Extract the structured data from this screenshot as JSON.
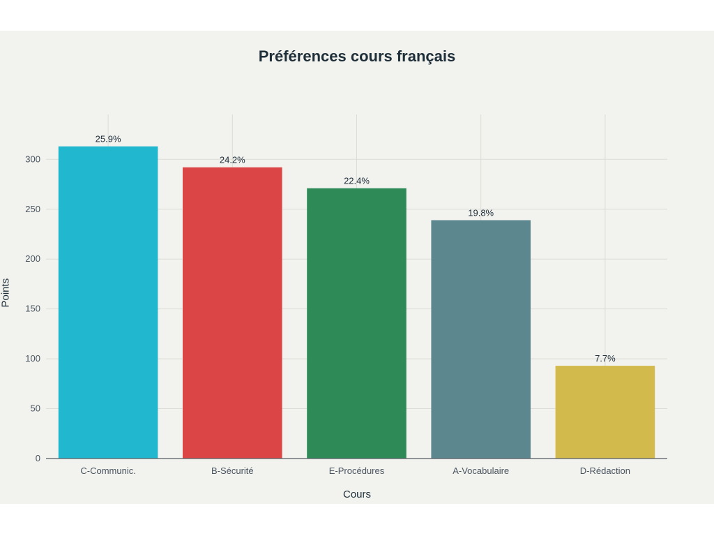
{
  "chart_data": {
    "type": "bar",
    "title": "Préférences cours français",
    "xlabel": "Cours",
    "ylabel": "Points",
    "categories": [
      "C-Communic.",
      "B-Sécurité",
      "E-Procédures",
      "A-Vocabulaire",
      "D-Rédaction"
    ],
    "values": [
      313,
      292,
      271,
      239,
      93
    ],
    "data_labels": [
      "25.9%",
      "24.2%",
      "22.4%",
      "19.8%",
      "7.7%"
    ],
    "colors": [
      "#21b8cf",
      "#db4545",
      "#2e8b57",
      "#5d878f",
      "#d2ba4c"
    ],
    "ylim": [
      0,
      345
    ],
    "yticks": [
      0,
      50,
      100,
      150,
      200,
      250,
      300
    ],
    "ytick_labels": [
      "0",
      "50",
      "100",
      "150",
      "200",
      "250",
      "300"
    ],
    "grid": true,
    "legend": "none"
  }
}
